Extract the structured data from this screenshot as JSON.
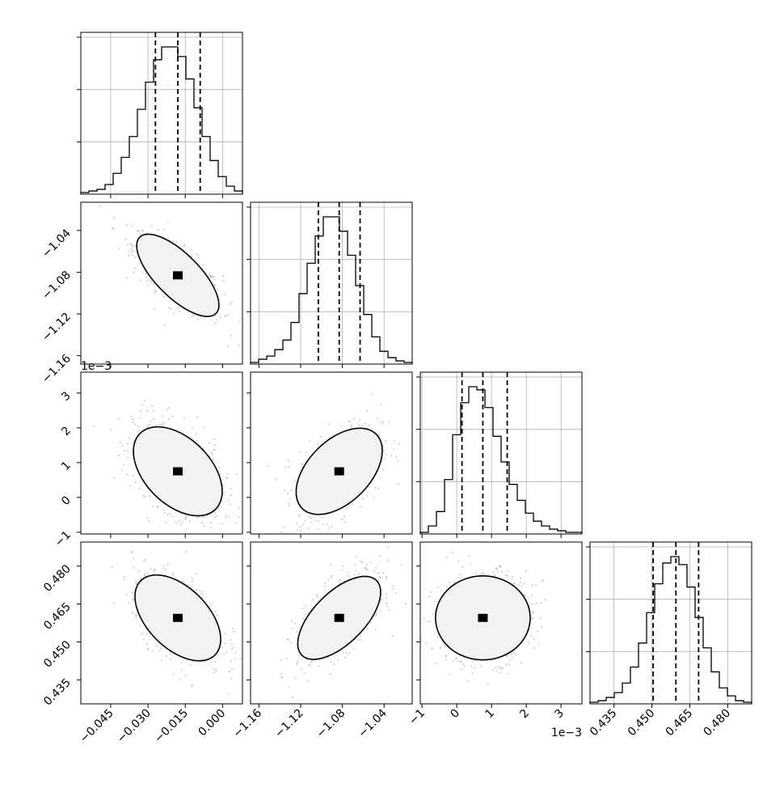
{
  "chart_data": {
    "type": "corner",
    "parameters": [
      {
        "range": [
          -0.057,
          0.008
        ],
        "ticks": [
          -0.045,
          -0.03,
          -0.015,
          0.0
        ],
        "tick_labels": [
          "−0.045",
          "−0.030",
          "−0.015",
          "0.000"
        ],
        "quantiles": [
          -0.027,
          -0.018,
          -0.009
        ],
        "offset_label": ""
      },
      {
        "range": [
          -1.168,
          -1.013
        ],
        "ticks": [
          -1.16,
          -1.12,
          -1.08,
          -1.04
        ],
        "tick_labels": [
          "−1.16",
          "−1.12",
          "−1.08",
          "−1.04"
        ],
        "quantiles": [
          -1.103,
          -1.083,
          -1.063
        ],
        "offset_label": ""
      },
      {
        "range": [
          -1.05,
          3.6
        ],
        "ticks": [
          -1,
          0,
          1,
          2,
          3
        ],
        "tick_labels": [
          "−1",
          "0",
          "1",
          "2",
          "3"
        ],
        "quantiles": [
          0.15,
          0.75,
          1.45
        ],
        "offset_label": "1e−3"
      },
      {
        "range": [
          0.4255,
          0.4895
        ],
        "ticks": [
          0.435,
          0.45,
          0.465,
          0.48
        ],
        "tick_labels": [
          "0.435",
          "0.450",
          "0.465",
          "0.480"
        ],
        "quantiles": [
          0.4505,
          0.4595,
          0.4685
        ],
        "offset_label": ""
      }
    ],
    "histograms": [
      [
        1,
        2,
        3,
        6,
        13,
        23,
        36,
        53,
        70,
        84,
        92,
        92,
        86,
        72,
        54,
        36,
        21,
        11,
        5,
        2
      ],
      [
        1,
        3,
        5,
        9,
        15,
        26,
        44,
        63,
        80,
        92,
        92,
        83,
        68,
        49,
        31,
        17,
        8,
        4,
        2,
        1
      ],
      [
        1,
        5,
        14,
        34,
        62,
        82,
        92,
        90,
        79,
        61,
        45,
        31,
        21,
        13,
        8,
        5,
        3,
        2,
        1,
        1
      ],
      [
        1,
        2,
        4,
        7,
        13,
        23,
        38,
        57,
        75,
        88,
        92,
        87,
        73,
        54,
        35,
        20,
        10,
        5,
        2,
        1
      ]
    ],
    "correlations": [
      [
        1.0,
        -0.72,
        -0.45,
        -0.5
      ],
      [
        -0.72,
        1.0,
        0.48,
        0.62
      ],
      [
        -0.45,
        0.48,
        1.0,
        0.12
      ],
      [
        -0.5,
        0.62,
        0.12,
        1.0
      ]
    ],
    "contour_levels": [
      0.5,
      1.0,
      1.5,
      2.0
    ],
    "colors": {
      "line": "#000000",
      "grid": "#b0b0b0",
      "points": "#9a9a9a",
      "background": "#ffffff"
    }
  }
}
